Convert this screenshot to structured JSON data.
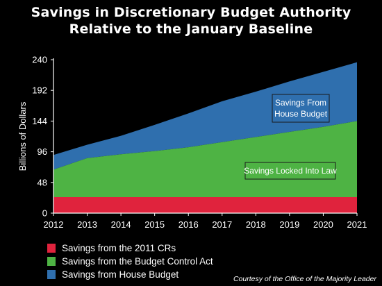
{
  "title_line1": "Savings in Discretionary Budget Authority",
  "title_line2": "Relative to the January Baseline",
  "credit": "Courtesy of the Office of the Majority Leader",
  "colors": {
    "red": "#e0233d",
    "green": "#4eb344",
    "blue": "#2f6fae",
    "background": "#000000"
  },
  "chart_data": {
    "type": "area",
    "stacked": true,
    "title": "Savings in Discretionary Budget Authority Relative to the January Baseline",
    "xlabel": "",
    "ylabel": "Billions of Dollars",
    "x": [
      "2012",
      "2013",
      "2014",
      "2015",
      "2016",
      "2017",
      "2018",
      "2019",
      "2020",
      "2021"
    ],
    "ylim": [
      0,
      240
    ],
    "yticks": [
      "0",
      "48",
      "96",
      "144",
      "192",
      "240"
    ],
    "grid": false,
    "legend_position": "bottom-left",
    "series": [
      {
        "name": "Savings from the 2011 CRs",
        "color": "#e0233d",
        "cumulative": [
          25,
          25,
          25,
          25,
          25,
          25,
          25,
          25,
          25,
          25
        ]
      },
      {
        "name": "Savings from the Budget Control Act",
        "color": "#4eb344",
        "cumulative": [
          68,
          86,
          92,
          97,
          103,
          111,
          119,
          127,
          135,
          144
        ]
      },
      {
        "name": "Savings from House Budget",
        "color": "#2f6fae",
        "cumulative": [
          91,
          107,
          121,
          138,
          156,
          175,
          190,
          206,
          221,
          236
        ]
      }
    ],
    "annotations": [
      {
        "text_lines": [
          "Savings From",
          "House Budget"
        ],
        "boxed": true
      },
      {
        "text_lines": [
          "Savings Locked Into Law"
        ],
        "boxed": true
      }
    ]
  }
}
